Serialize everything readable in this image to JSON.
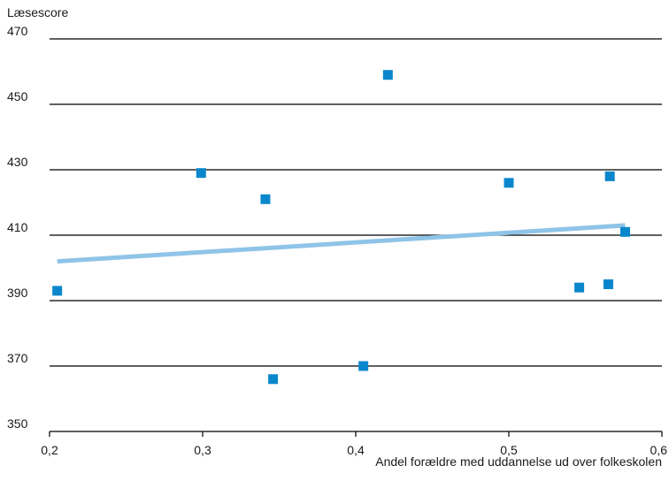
{
  "chart_data": {
    "type": "scatter",
    "title": "",
    "xlabel": "Andel forældre med uddannelse ud over folkeskolen",
    "ylabel": "Læsescore",
    "xlim": [
      0.2,
      0.6
    ],
    "ylim": [
      350,
      470
    ],
    "x_ticks": [
      "0,2",
      "0,3",
      "0,4",
      "0,5",
      "0,6"
    ],
    "y_ticks": [
      "350",
      "370",
      "390",
      "410",
      "430",
      "450",
      "470"
    ],
    "grid": "horizontal",
    "series": [
      {
        "marker": "square",
        "color": "#0a87cc",
        "points": [
          {
            "x": 0.205,
            "y": 393
          },
          {
            "x": 0.299,
            "y": 429
          },
          {
            "x": 0.341,
            "y": 421
          },
          {
            "x": 0.346,
            "y": 366
          },
          {
            "x": 0.405,
            "y": 370
          },
          {
            "x": 0.421,
            "y": 459
          },
          {
            "x": 0.5,
            "y": 426
          },
          {
            "x": 0.546,
            "y": 394
          },
          {
            "x": 0.565,
            "y": 395
          },
          {
            "x": 0.566,
            "y": 428
          },
          {
            "x": 0.576,
            "y": 411
          }
        ]
      }
    ],
    "trendline": {
      "type": "linear",
      "color": "#8fc4e8",
      "points": [
        {
          "x": 0.205,
          "y": 402
        },
        {
          "x": 0.576,
          "y": 413
        }
      ]
    }
  }
}
